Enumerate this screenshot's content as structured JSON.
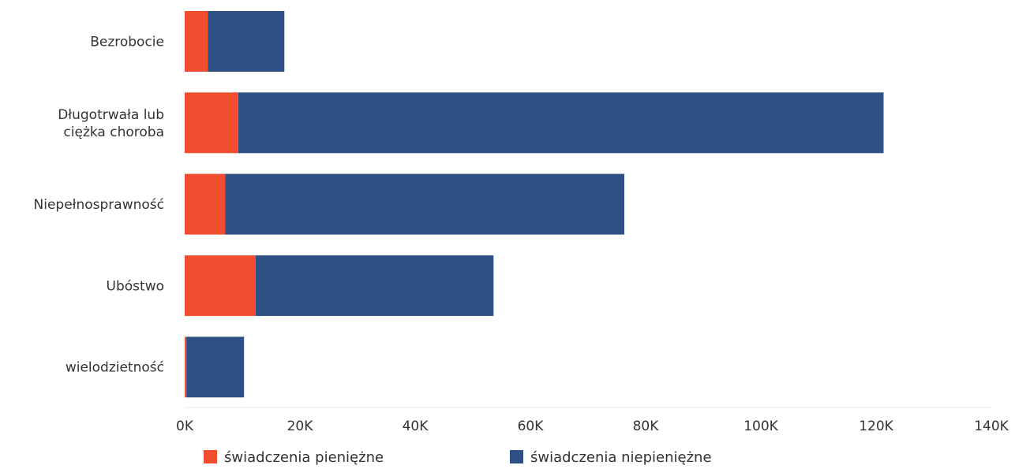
{
  "chart_data": {
    "type": "bar",
    "orientation": "horizontal",
    "stacked": true,
    "title": "",
    "xlabel": "",
    "ylabel": "",
    "categories": [
      [
        "Bezrobocie"
      ],
      [
        "Długotrwała lub",
        "ciężka choroba"
      ],
      [
        "Niepełnosprawność"
      ],
      [
        "Ubóstwo"
      ],
      [
        "wielodzietność"
      ]
    ],
    "series": [
      {
        "name": "świadczenia pieniężne",
        "color": "#f04e2f",
        "values": [
          4000,
          9300,
          7000,
          12300,
          300
        ]
      },
      {
        "name": "świadczenia niepieniężne",
        "color": "#2e5185",
        "values": [
          13300,
          112000,
          69300,
          41300,
          10000
        ]
      }
    ],
    "xlim": [
      0,
      140000
    ],
    "x_ticks": [
      0,
      20000,
      40000,
      60000,
      80000,
      100000,
      120000,
      140000
    ],
    "x_tick_labels": [
      "0K",
      "20K",
      "40K",
      "60K",
      "80K",
      "100K",
      "120K",
      "140K"
    ],
    "grid": false,
    "legend_position": "bottom"
  }
}
